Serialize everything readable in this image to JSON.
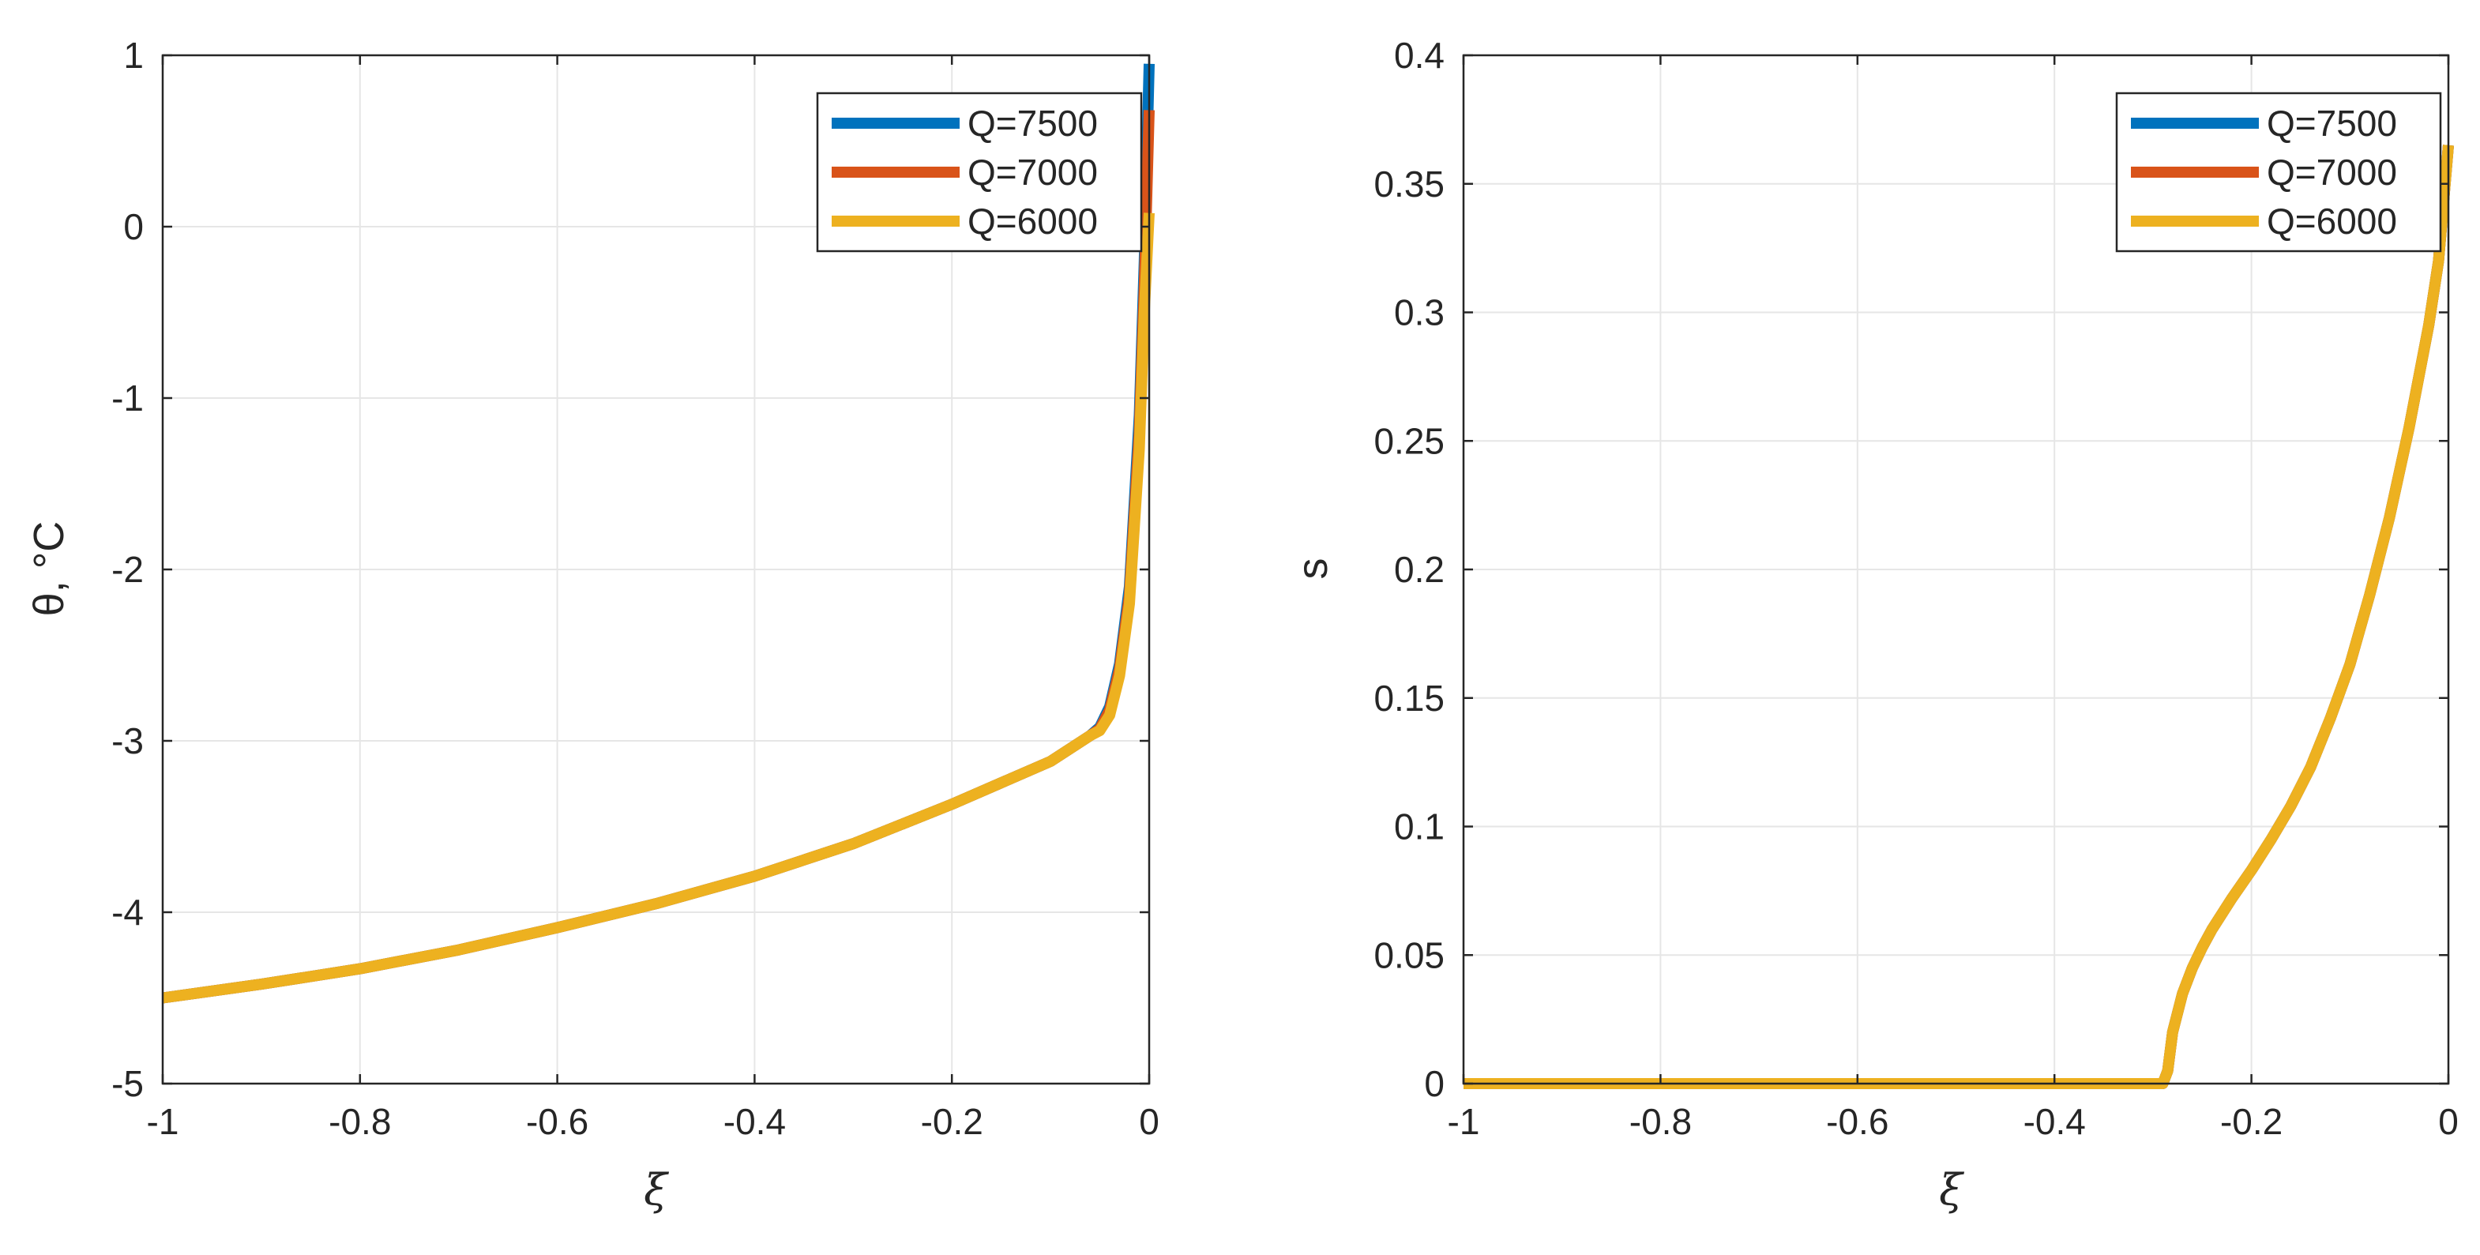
{
  "chart_data": [
    {
      "type": "line",
      "xlabel": "ξ",
      "ylabel": "θ, °C",
      "xlim": [
        -1,
        0
      ],
      "ylim": [
        -5,
        1
      ],
      "xticks": [
        -1,
        -0.8,
        -0.6,
        -0.4,
        -0.2,
        0
      ],
      "yticks": [
        -5,
        -4,
        -3,
        -2,
        -1,
        0,
        1
      ],
      "xtick_labels": [
        "-1",
        "-0.8",
        "-0.6",
        "-0.4",
        "-0.2",
        "0"
      ],
      "ytick_labels": [
        "-5",
        "-4",
        "-3",
        "-2",
        "-1",
        "0",
        "1"
      ],
      "grid": true,
      "legend_position": "top-right",
      "series": [
        {
          "name": "Q=7500",
          "color": "#0072bd",
          "x": [
            -1,
            -0.9,
            -0.8,
            -0.7,
            -0.6,
            -0.5,
            -0.4,
            -0.3,
            -0.2,
            -0.1,
            -0.06,
            -0.05,
            -0.04,
            -0.03,
            -0.02,
            -0.01,
            -0.005,
            0
          ],
          "y": [
            -4.5,
            -4.42,
            -4.33,
            -4.22,
            -4.09,
            -3.95,
            -3.79,
            -3.6,
            -3.37,
            -3.12,
            -2.97,
            -2.92,
            -2.8,
            -2.55,
            -2.1,
            -1.1,
            -0.2,
            0.95
          ]
        },
        {
          "name": "Q=7000",
          "color": "#d95319",
          "x": [
            -1,
            -0.9,
            -0.8,
            -0.7,
            -0.6,
            -0.5,
            -0.4,
            -0.3,
            -0.2,
            -0.1,
            -0.06,
            -0.05,
            -0.04,
            -0.03,
            -0.02,
            -0.01,
            -0.005,
            0
          ],
          "y": [
            -4.5,
            -4.42,
            -4.33,
            -4.22,
            -4.09,
            -3.95,
            -3.79,
            -3.6,
            -3.37,
            -3.12,
            -2.97,
            -2.93,
            -2.82,
            -2.58,
            -2.15,
            -1.2,
            -0.35,
            0.68
          ]
        },
        {
          "name": "Q=6000",
          "color": "#edb120",
          "x": [
            -1,
            -0.9,
            -0.8,
            -0.7,
            -0.6,
            -0.5,
            -0.4,
            -0.3,
            -0.2,
            -0.1,
            -0.06,
            -0.05,
            -0.04,
            -0.03,
            -0.02,
            -0.01,
            -0.005,
            0
          ],
          "y": [
            -4.5,
            -4.42,
            -4.33,
            -4.22,
            -4.09,
            -3.95,
            -3.79,
            -3.6,
            -3.37,
            -3.12,
            -2.97,
            -2.94,
            -2.85,
            -2.62,
            -2.2,
            -1.3,
            -0.5,
            0.08
          ]
        }
      ]
    },
    {
      "type": "line",
      "xlabel": "ξ",
      "ylabel": "s",
      "xlim": [
        -1,
        0
      ],
      "ylim": [
        0,
        0.4
      ],
      "xticks": [
        -1,
        -0.8,
        -0.6,
        -0.4,
        -0.2,
        0
      ],
      "yticks": [
        0,
        0.05,
        0.1,
        0.15,
        0.2,
        0.25,
        0.3,
        0.35,
        0.4
      ],
      "xtick_labels": [
        "-1",
        "-0.8",
        "-0.6",
        "-0.4",
        "-0.2",
        "0"
      ],
      "ytick_labels": [
        "0",
        "0.05",
        "0.1",
        "0.15",
        "0.2",
        "0.25",
        "0.3",
        "0.35",
        "0.4"
      ],
      "grid": true,
      "legend_position": "top-right",
      "series": [
        {
          "name": "Q=7500",
          "color": "#0072bd",
          "x": [
            -1,
            -0.8,
            -0.6,
            -0.4,
            -0.3,
            -0.29,
            -0.285,
            -0.28,
            -0.27,
            -0.26,
            -0.25,
            -0.24,
            -0.22,
            -0.2,
            -0.18,
            -0.16,
            -0.14,
            -0.12,
            -0.1,
            -0.08,
            -0.06,
            -0.04,
            -0.02,
            -0.01,
            0
          ],
          "y": [
            0,
            0,
            0,
            0,
            0,
            0,
            0.005,
            0.02,
            0.035,
            0.045,
            0.053,
            0.06,
            0.072,
            0.083,
            0.095,
            0.108,
            0.123,
            0.142,
            0.163,
            0.19,
            0.22,
            0.255,
            0.295,
            0.32,
            0.365
          ]
        },
        {
          "name": "Q=7000",
          "color": "#d95319",
          "x": [
            -1,
            -0.8,
            -0.6,
            -0.4,
            -0.3,
            -0.29,
            -0.285,
            -0.28,
            -0.27,
            -0.26,
            -0.25,
            -0.24,
            -0.22,
            -0.2,
            -0.18,
            -0.16,
            -0.14,
            -0.12,
            -0.1,
            -0.08,
            -0.06,
            -0.04,
            -0.02,
            -0.01,
            0
          ],
          "y": [
            0,
            0,
            0,
            0,
            0,
            0,
            0.005,
            0.02,
            0.035,
            0.045,
            0.053,
            0.06,
            0.072,
            0.083,
            0.095,
            0.108,
            0.123,
            0.142,
            0.163,
            0.19,
            0.22,
            0.255,
            0.295,
            0.32,
            0.365
          ]
        },
        {
          "name": "Q=6000",
          "color": "#edb120",
          "x": [
            -1,
            -0.8,
            -0.6,
            -0.4,
            -0.3,
            -0.29,
            -0.285,
            -0.28,
            -0.27,
            -0.26,
            -0.25,
            -0.24,
            -0.22,
            -0.2,
            -0.18,
            -0.16,
            -0.14,
            -0.12,
            -0.1,
            -0.08,
            -0.06,
            -0.04,
            -0.02,
            -0.01,
            0
          ],
          "y": [
            0,
            0,
            0,
            0,
            0,
            0,
            0.005,
            0.02,
            0.035,
            0.045,
            0.053,
            0.06,
            0.072,
            0.083,
            0.095,
            0.108,
            0.123,
            0.142,
            0.163,
            0.19,
            0.22,
            0.255,
            0.295,
            0.32,
            0.365
          ]
        }
      ]
    }
  ]
}
